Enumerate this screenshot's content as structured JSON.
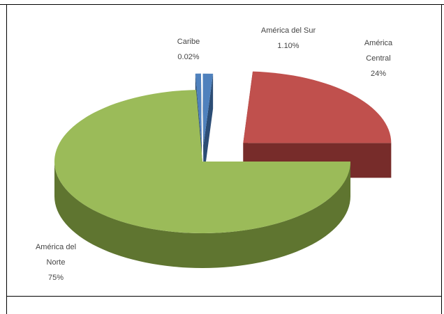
{
  "chart_data": {
    "type": "pie",
    "style": "3d-exploded",
    "slices": [
      {
        "name": "América del Norte",
        "label_lines": [
          "América del",
          "Norte",
          "75%"
        ],
        "value": 75,
        "color": "#9bbb59",
        "side_color": "#5f7530"
      },
      {
        "name": "Caribe",
        "label_lines": [
          "Caribe",
          "0.02%"
        ],
        "value": 0.02,
        "color": "#4f81bd",
        "side_color": "#2c4d75"
      },
      {
        "name": "América del Sur",
        "label_lines": [
          "América del Sur",
          "1.10%"
        ],
        "value": 1.1,
        "color": "#4f81bd",
        "side_color": "#2c4d75"
      },
      {
        "name": "América Central",
        "label_lines": [
          "América",
          "Central",
          "24%"
        ],
        "value": 24,
        "color": "#c0504d",
        "side_color": "#772c2a"
      }
    ],
    "legend": "none",
    "grid": false
  }
}
